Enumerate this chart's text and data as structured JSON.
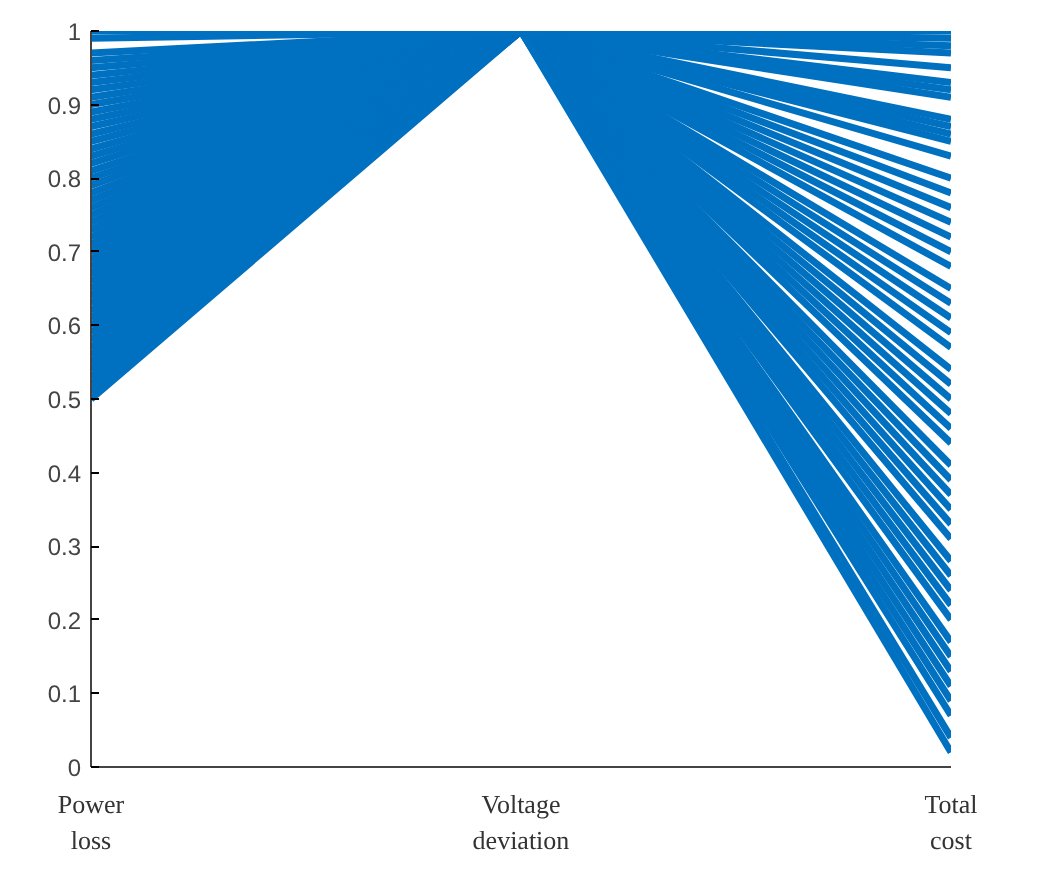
{
  "chart_data": {
    "type": "line",
    "categories": [
      "Power loss",
      "Voltage deviation",
      "Total cost"
    ],
    "ylim": [
      0,
      1
    ],
    "yticks": [
      0,
      0.1,
      0.2,
      0.3,
      0.4,
      0.5,
      0.6,
      0.7,
      0.8,
      0.9,
      1
    ],
    "grid": false,
    "marker": "none",
    "line_style": "solid",
    "series": [
      {
        "color": "#0070c0",
        "values": [
          0.5,
          1,
          0.85
        ]
      },
      {
        "color": "#0070c0",
        "values": [
          0.51,
          1,
          0.83
        ]
      },
      {
        "color": "#0070c0",
        "values": [
          0.52,
          1,
          0.8
        ]
      },
      {
        "color": "#0070c0",
        "values": [
          0.53,
          1,
          0.78
        ]
      },
      {
        "color": "#0070c0",
        "values": [
          0.54,
          1,
          0.76
        ]
      },
      {
        "color": "#0070c0",
        "values": [
          0.55,
          1,
          0.74
        ]
      },
      {
        "color": "#0070c0",
        "values": [
          0.56,
          1,
          0.72
        ]
      },
      {
        "color": "#0070c0",
        "values": [
          0.57,
          1,
          0.7
        ]
      },
      {
        "color": "#0070c0",
        "values": [
          0.58,
          1,
          0.68
        ]
      },
      {
        "color": "#0070c0",
        "values": [
          0.59,
          1,
          0.65
        ]
      },
      {
        "color": "#0070c0",
        "values": [
          0.6,
          1,
          0.63
        ]
      },
      {
        "color": "#0070c0",
        "values": [
          0.61,
          1,
          0.61
        ]
      },
      {
        "color": "#0070c0",
        "values": [
          0.62,
          1,
          0.59
        ]
      },
      {
        "color": "#0070c0",
        "values": [
          0.63,
          1,
          0.57
        ]
      },
      {
        "color": "#0070c0",
        "values": [
          0.64,
          1,
          0.54
        ]
      },
      {
        "color": "#0070c0",
        "values": [
          0.65,
          1,
          0.52
        ]
      },
      {
        "color": "#0070c0",
        "values": [
          0.66,
          1,
          0.5
        ]
      },
      {
        "color": "#0070c0",
        "values": [
          0.67,
          1,
          0.48
        ]
      },
      {
        "color": "#0070c0",
        "values": [
          0.68,
          1,
          0.46
        ]
      },
      {
        "color": "#0070c0",
        "values": [
          0.69,
          1,
          0.44
        ]
      },
      {
        "color": "#0070c0",
        "values": [
          0.7,
          1,
          0.41
        ]
      },
      {
        "color": "#0070c0",
        "values": [
          0.71,
          1,
          0.39
        ]
      },
      {
        "color": "#0070c0",
        "values": [
          0.72,
          1,
          0.37
        ]
      },
      {
        "color": "#0070c0",
        "values": [
          0.73,
          1,
          0.35
        ]
      },
      {
        "color": "#0070c0",
        "values": [
          0.74,
          1,
          0.33
        ]
      },
      {
        "color": "#0070c0",
        "values": [
          0.75,
          1,
          0.31
        ]
      },
      {
        "color": "#0070c0",
        "values": [
          0.76,
          1,
          0.28
        ]
      },
      {
        "color": "#0070c0",
        "values": [
          0.77,
          1,
          0.26
        ]
      },
      {
        "color": "#0070c0",
        "values": [
          0.78,
          1,
          0.24
        ]
      },
      {
        "color": "#0070c0",
        "values": [
          0.79,
          1,
          0.22
        ]
      },
      {
        "color": "#0070c0",
        "values": [
          0.8,
          1,
          0.2
        ]
      },
      {
        "color": "#0070c0",
        "values": [
          0.81,
          1,
          0.17
        ]
      },
      {
        "color": "#0070c0",
        "values": [
          0.82,
          1,
          0.15
        ]
      },
      {
        "color": "#0070c0",
        "values": [
          0.83,
          1,
          0.13
        ]
      },
      {
        "color": "#0070c0",
        "values": [
          0.84,
          1,
          0.11
        ]
      },
      {
        "color": "#0070c0",
        "values": [
          0.85,
          1,
          0.09
        ]
      },
      {
        "color": "#0070c0",
        "values": [
          0.86,
          1,
          0.07
        ]
      },
      {
        "color": "#0070c0",
        "values": [
          0.87,
          1,
          0.04
        ]
      },
      {
        "color": "#0070c0",
        "values": [
          0.88,
          1,
          0.02
        ]
      },
      {
        "color": "#0070c0",
        "values": [
          0.89,
          1,
          0.86
        ]
      },
      {
        "color": "#0070c0",
        "values": [
          0.9,
          1,
          0.87
        ]
      },
      {
        "color": "#0070c0",
        "values": [
          0.91,
          1,
          0.88
        ]
      },
      {
        "color": "#0070c0",
        "values": [
          0.92,
          1,
          0.91
        ]
      },
      {
        "color": "#0070c0",
        "values": [
          0.93,
          1,
          0.92
        ]
      },
      {
        "color": "#0070c0",
        "values": [
          0.94,
          1,
          0.93
        ]
      },
      {
        "color": "#0070c0",
        "values": [
          0.95,
          1,
          0.95
        ]
      },
      {
        "color": "#0070c0",
        "values": [
          0.96,
          1,
          0.97
        ]
      },
      {
        "color": "#0070c0",
        "values": [
          0.97,
          1,
          0.98
        ]
      },
      {
        "color": "#0070c0",
        "values": [
          0.99,
          1,
          0.99
        ]
      },
      {
        "color": "#0070c0",
        "values": [
          1.0,
          1,
          1.0
        ]
      }
    ]
  }
}
